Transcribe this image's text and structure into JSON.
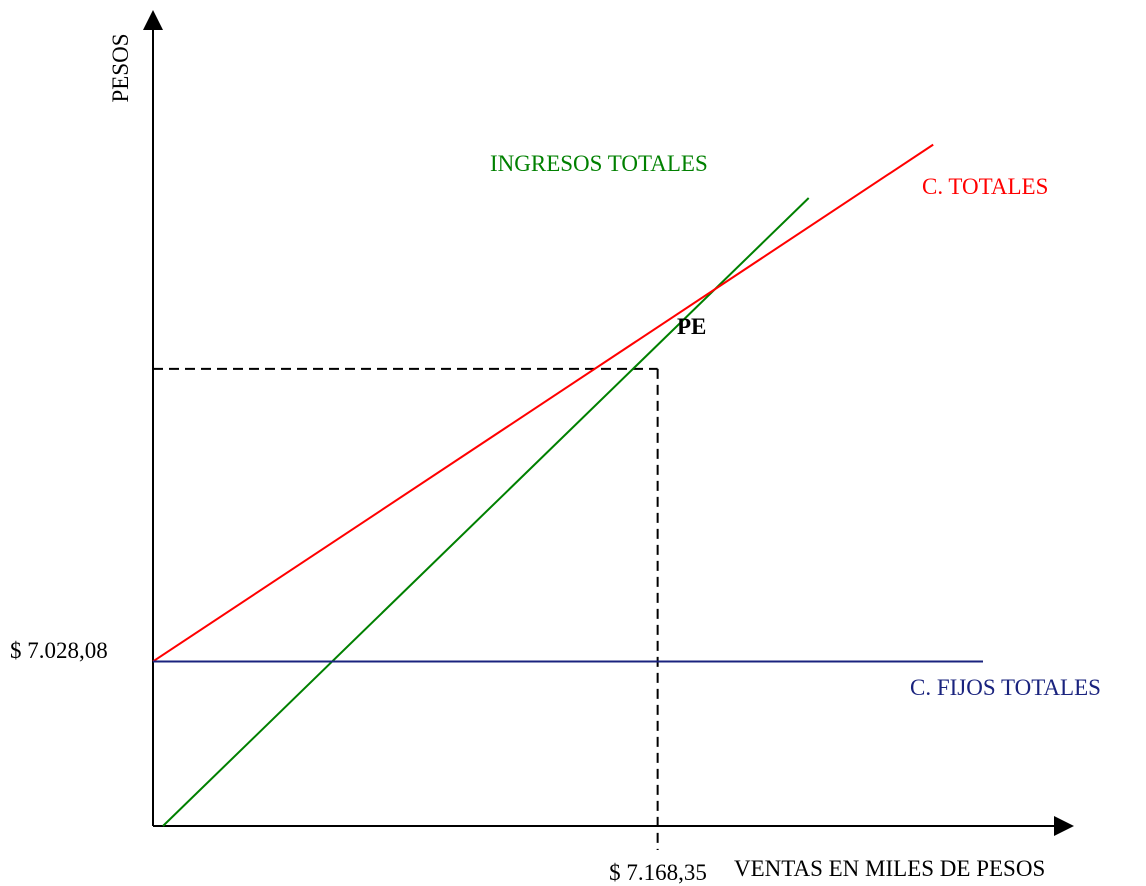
{
  "chart_data": {
    "type": "line",
    "title": "",
    "xlabel": "VENTAS EN MILES DE PESOS",
    "ylabel": "PESOS",
    "x_tick_label": "$ 7.168,35",
    "y_tick_label": "$ 7.028,08",
    "break_even_label": "PE",
    "grid": false,
    "legend": "none (series labelled directly on chart)",
    "x_domain": [
      0,
      1
    ],
    "y_domain": [
      0,
      1
    ],
    "series": [
      {
        "name": "INGRESOS TOTALES",
        "color": "#008000",
        "points": [
          [
            0.012,
            0.0
          ],
          [
            0.79,
            1.0
          ]
        ]
      },
      {
        "name": "C. TOTALES",
        "color": "#ff0000",
        "points": [
          [
            0.0,
            0.262
          ],
          [
            0.94,
            1.085
          ]
        ]
      },
      {
        "name": "C. FIJOS TOTALES",
        "color": "#1a237e",
        "points": [
          [
            0.0,
            0.262
          ],
          [
            1.0,
            0.262
          ]
        ]
      }
    ],
    "break_even": {
      "x": 0.608,
      "y": 0.728
    }
  }
}
